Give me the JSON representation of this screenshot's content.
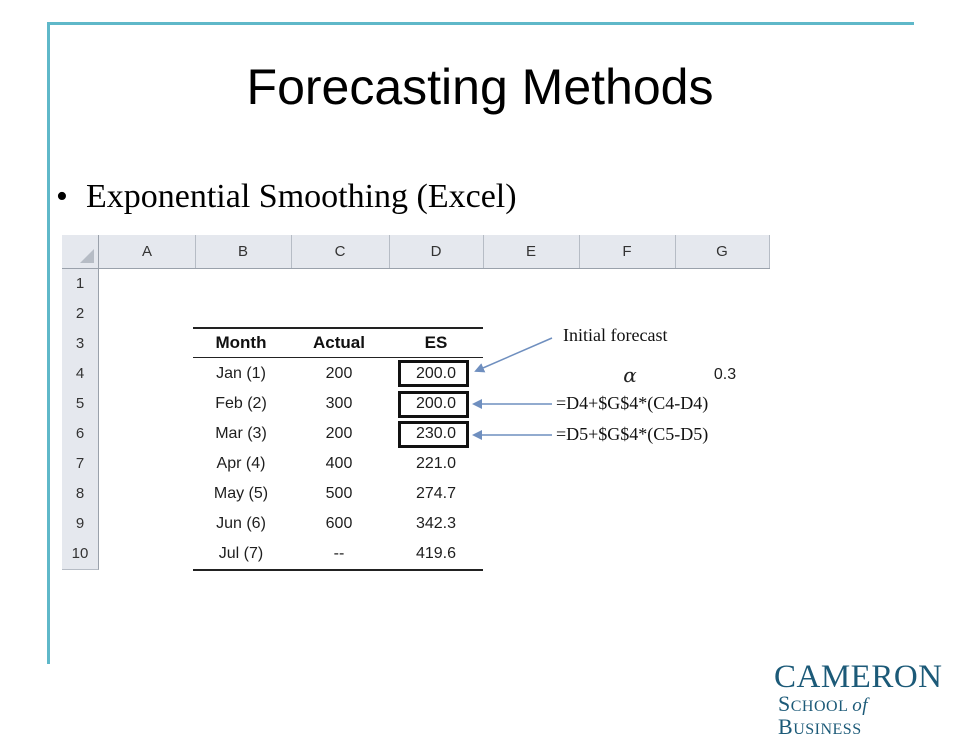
{
  "slide": {
    "title": "Forecasting Methods",
    "bullet": "Exponential Smoothing (Excel)",
    "bullet_symbol": "•"
  },
  "spreadsheet": {
    "columns": [
      "A",
      "B",
      "C",
      "D",
      "E",
      "F",
      "G"
    ],
    "rows": [
      "1",
      "2",
      "3",
      "4",
      "5",
      "6",
      "7",
      "8",
      "9",
      "10"
    ],
    "table_headers": [
      "Month",
      "Actual",
      "ES"
    ],
    "table_rows": [
      {
        "month": "Jan (1)",
        "actual": "200",
        "es": "200.0"
      },
      {
        "month": "Feb (2)",
        "actual": "300",
        "es": "200.0"
      },
      {
        "month": "Mar (3)",
        "actual": "200",
        "es": "230.0"
      },
      {
        "month": "Apr (4)",
        "actual": "400",
        "es": "221.0"
      },
      {
        "month": "May (5)",
        "actual": "500",
        "es": "274.7"
      },
      {
        "month": "Jun (6)",
        "actual": "600",
        "es": "342.3"
      },
      {
        "month": "Jul (7)",
        "actual": "--",
        "es": "419.6"
      }
    ],
    "alpha_label": "α",
    "alpha_value": "0.3"
  },
  "annotations": {
    "initial_forecast": "Initial forecast",
    "formula_d5": "=D4+$G$4*(C4-D4)",
    "formula_d6": "=D5+$G$4*(C5-D5)"
  },
  "logo": {
    "line1": "CAMERON",
    "line2_parts": [
      "S",
      "CHOOL ",
      "of",
      " B",
      "USINESS"
    ]
  },
  "colors": {
    "frame_accent": "#5fb8c9",
    "arrow": "#6f8fbf",
    "logo": "#1c5a78"
  }
}
